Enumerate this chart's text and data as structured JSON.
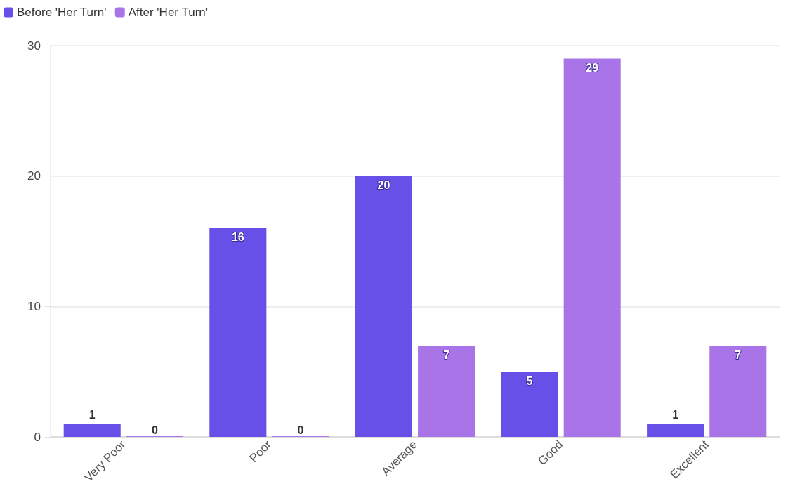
{
  "chart_data": {
    "type": "bar",
    "categories": [
      "Very Poor",
      "Poor",
      "Average",
      "Good",
      "Excellent"
    ],
    "series": [
      {
        "name": "Before 'Her Turn'",
        "color": "#6650e8",
        "values": [
          1,
          16,
          20,
          5,
          1
        ]
      },
      {
        "name": "After 'Her Turn'",
        "color": "#a874e8",
        "values": [
          0,
          0,
          7,
          29,
          7
        ]
      }
    ],
    "ylim": [
      0,
      30
    ],
    "yticks": [
      0,
      10,
      20,
      30
    ],
    "grid": "y",
    "legend": "top left",
    "data_labels": true
  }
}
